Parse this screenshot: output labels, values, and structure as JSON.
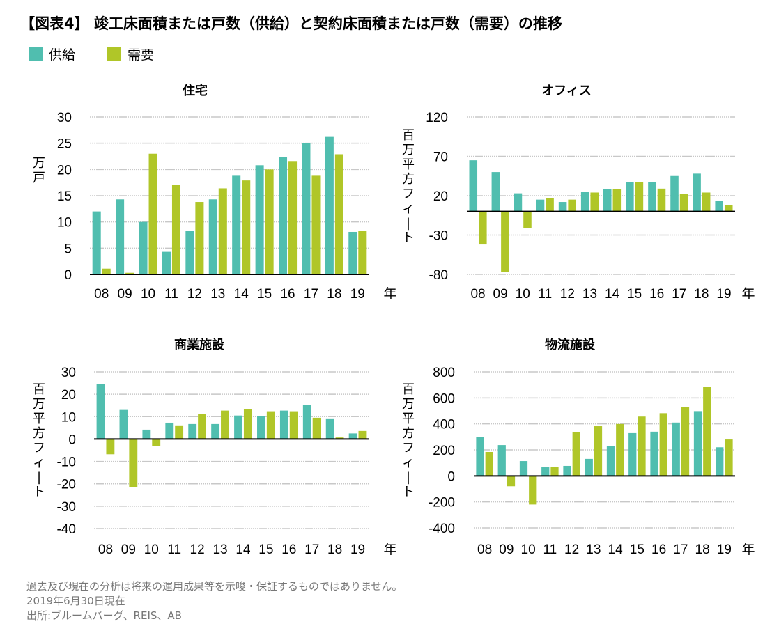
{
  "title": "【図表4】 竣工床面積または戸数（供給）と契約床面積または戸数（需要）の推移",
  "legend": [
    {
      "label": "供給",
      "color": "#50BEAF"
    },
    {
      "label": "需要",
      "color": "#B0C628"
    }
  ],
  "footer": {
    "disclaimer": "過去及び現在の分析は将来の運用成果等を示唆・保証するものではありません。",
    "date": "2019年6月30日現在",
    "source": "出所:ブルームバーグ、REIS、AB"
  },
  "chart_data": [
    {
      "type": "bar",
      "title": "住宅",
      "ylabel": "万戸",
      "xlabel": "",
      "x_unit_label": "年",
      "categories": [
        "08",
        "09",
        "10",
        "11",
        "12",
        "13",
        "14",
        "15",
        "16",
        "17",
        "18",
        "19"
      ],
      "ylim": [
        0,
        30
      ],
      "yticks": [
        0,
        5,
        10,
        15,
        20,
        25,
        30
      ],
      "grid": true,
      "legend": "top-left",
      "series": [
        {
          "name": "供給",
          "values": [
            12.0,
            14.3,
            10.0,
            4.3,
            8.3,
            14.3,
            18.8,
            20.8,
            22.3,
            25.0,
            26.2,
            8.1
          ]
        },
        {
          "name": "需要",
          "values": [
            1.1,
            0.3,
            23.0,
            17.1,
            13.8,
            16.4,
            17.9,
            20.0,
            21.6,
            18.8,
            22.9,
            8.3
          ]
        }
      ]
    },
    {
      "type": "bar",
      "title": "オフィス",
      "ylabel": "百万平方フィート",
      "xlabel": "",
      "x_unit_label": "年",
      "categories": [
        "08",
        "09",
        "10",
        "11",
        "12",
        "13",
        "14",
        "15",
        "16",
        "17",
        "18",
        "19"
      ],
      "ylim": [
        -80,
        120
      ],
      "yticks": [
        -80,
        -30,
        20,
        70,
        120
      ],
      "grid": true,
      "legend": "top-left",
      "series": [
        {
          "name": "供給",
          "values": [
            65,
            50,
            23,
            15,
            12,
            25,
            28,
            37,
            37,
            45,
            48,
            13
          ]
        },
        {
          "name": "需要",
          "values": [
            -42,
            -77,
            -21,
            17,
            15,
            24,
            28,
            37,
            29,
            22,
            24,
            8
          ]
        }
      ]
    },
    {
      "type": "bar",
      "title": "商業施設",
      "ylabel": "百万平方フィート",
      "xlabel": "",
      "x_unit_label": "年",
      "categories": [
        "08",
        "09",
        "10",
        "11",
        "12",
        "13",
        "14",
        "15",
        "16",
        "17",
        "18",
        "19"
      ],
      "ylim": [
        -40,
        30
      ],
      "yticks": [
        -40,
        -30,
        -20,
        -10,
        0,
        10,
        20,
        30
      ],
      "grid": true,
      "legend": "top-left",
      "series": [
        {
          "name": "供給",
          "values": [
            24.7,
            13.0,
            4.2,
            7.3,
            6.7,
            6.7,
            10.5,
            10.2,
            12.7,
            15.2,
            9.2,
            2.5
          ]
        },
        {
          "name": "需要",
          "values": [
            -6.8,
            -21.5,
            -3.2,
            6.1,
            11.1,
            12.7,
            13.3,
            12.4,
            12.4,
            9.5,
            0.7,
            3.6
          ]
        }
      ]
    },
    {
      "type": "bar",
      "title": "物流施設",
      "ylabel": "百万平方フィート",
      "xlabel": "",
      "x_unit_label": "年",
      "categories": [
        "08",
        "09",
        "10",
        "11",
        "12",
        "13",
        "14",
        "15",
        "16",
        "17",
        "18",
        "19"
      ],
      "ylim": [
        -400,
        800
      ],
      "yticks": [
        -400,
        -200,
        0,
        200,
        400,
        600,
        800
      ],
      "grid": true,
      "legend": "top-left",
      "series": [
        {
          "name": "供給",
          "values": [
            300,
            237,
            114,
            66,
            77,
            131,
            231,
            329,
            340,
            410,
            498,
            220
          ]
        },
        {
          "name": "需要",
          "values": [
            184,
            -80,
            -220,
            71,
            336,
            382,
            399,
            456,
            482,
            532,
            685,
            280
          ]
        }
      ]
    }
  ]
}
